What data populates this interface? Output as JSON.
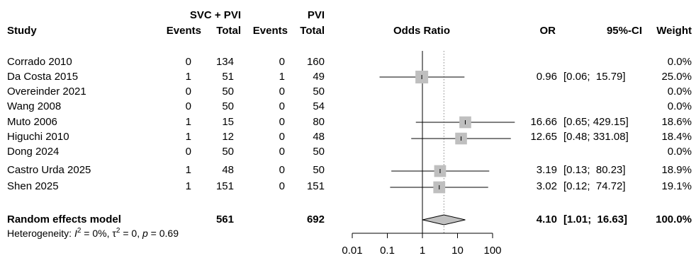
{
  "headers": {
    "study": "Study",
    "group1": "SVC + PVI",
    "group2": "PVI",
    "events": "Events",
    "total": "Total",
    "odds_ratio": "Odds Ratio",
    "or": "OR",
    "ci": "95%-CI",
    "weight": "Weight"
  },
  "studies": [
    {
      "name": "Corrado 2010",
      "e1": "0",
      "n1": "134",
      "e2": "0",
      "n2": "160",
      "or": "",
      "ci": "",
      "weight": "0.0%"
    },
    {
      "name": "Da Costa 2015",
      "e1": "1",
      "n1": "51",
      "e2": "1",
      "n2": "49",
      "or": "0.96",
      "ci": "[0.06;  15.79]",
      "weight": "25.0%"
    },
    {
      "name": "Overeinder 2021",
      "e1": "0",
      "n1": "50",
      "e2": "0",
      "n2": "50",
      "or": "",
      "ci": "",
      "weight": "0.0%"
    },
    {
      "name": "Wang 2008",
      "e1": "0",
      "n1": "50",
      "e2": "0",
      "n2": "54",
      "or": "",
      "ci": "",
      "weight": "0.0%"
    },
    {
      "name": "Muto 2006",
      "e1": "1",
      "n1": "15",
      "e2": "0",
      "n2": "80",
      "or": "16.66",
      "ci": "[0.65; 429.15]",
      "weight": "18.6%"
    },
    {
      "name": "Higuchi 2010",
      "e1": "1",
      "n1": "12",
      "e2": "0",
      "n2": "48",
      "or": "12.65",
      "ci": "[0.48; 331.08]",
      "weight": "18.4%"
    },
    {
      "name": "Dong 2024",
      "e1": "0",
      "n1": "50",
      "e2": "0",
      "n2": "50",
      "or": "",
      "ci": "",
      "weight": "0.0%"
    },
    {
      "name": "Castro Urda 2025",
      "e1": "1",
      "n1": "48",
      "e2": "0",
      "n2": "50",
      "or": "3.19",
      "ci": "[0.13;  80.23]",
      "weight": "18.9%"
    },
    {
      "name": "Shen 2025",
      "e1": "1",
      "n1": "151",
      "e2": "0",
      "n2": "151",
      "or": "3.02",
      "ci": "[0.12;  74.72]",
      "weight": "19.1%"
    }
  ],
  "pooled": {
    "label": "Random effects model",
    "n1": "561",
    "n2": "692",
    "or": "4.10",
    "ci": "[1.01;  16.63]",
    "weight": "100.0%"
  },
  "heterogeneity": {
    "prefix": "Heterogeneity: ",
    "i2_sym": "I",
    "i2_exp": "2",
    "i2_val": " = 0%, ",
    "tau_sym": "τ",
    "tau_exp": "2",
    "tau_val": " = 0, ",
    "p_sym": "p",
    "p_val": " = 0.69"
  },
  "chart_data": {
    "type": "forest",
    "x_scale": "log",
    "xlim": [
      0.01,
      100
    ],
    "x_ticks": [
      0.01,
      0.1,
      1,
      10,
      100
    ],
    "x_tick_labels": [
      "0.01",
      "0.1",
      "1",
      "10",
      "100"
    ],
    "reference_line": 1,
    "pooled_line": 4.1,
    "colors": {
      "square": "#bfbfbf",
      "diamond": "#c0c0c0",
      "line": "#000000",
      "dotted": "#888888"
    },
    "points": [
      {
        "study": "Corrado 2010",
        "or": null,
        "lo": null,
        "hi": null,
        "weight": 0.0
      },
      {
        "study": "Da Costa 2015",
        "or": 0.96,
        "lo": 0.06,
        "hi": 15.79,
        "weight": 25.0
      },
      {
        "study": "Overeinder 2021",
        "or": null,
        "lo": null,
        "hi": null,
        "weight": 0.0
      },
      {
        "study": "Wang 2008",
        "or": null,
        "lo": null,
        "hi": null,
        "weight": 0.0
      },
      {
        "study": "Muto 2006",
        "or": 16.66,
        "lo": 0.65,
        "hi": 429.15,
        "weight": 18.6
      },
      {
        "study": "Higuchi 2010",
        "or": 12.65,
        "lo": 0.48,
        "hi": 331.08,
        "weight": 18.4
      },
      {
        "study": "Dong 2024",
        "or": null,
        "lo": null,
        "hi": null,
        "weight": 0.0
      },
      {
        "study": "Castro Urda 2025",
        "or": 3.19,
        "lo": 0.13,
        "hi": 80.23,
        "weight": 18.9
      },
      {
        "study": "Shen 2025",
        "or": 3.02,
        "lo": 0.12,
        "hi": 74.72,
        "weight": 19.1
      }
    ],
    "pooled": {
      "or": 4.1,
      "lo": 1.01,
      "hi": 16.63
    }
  }
}
